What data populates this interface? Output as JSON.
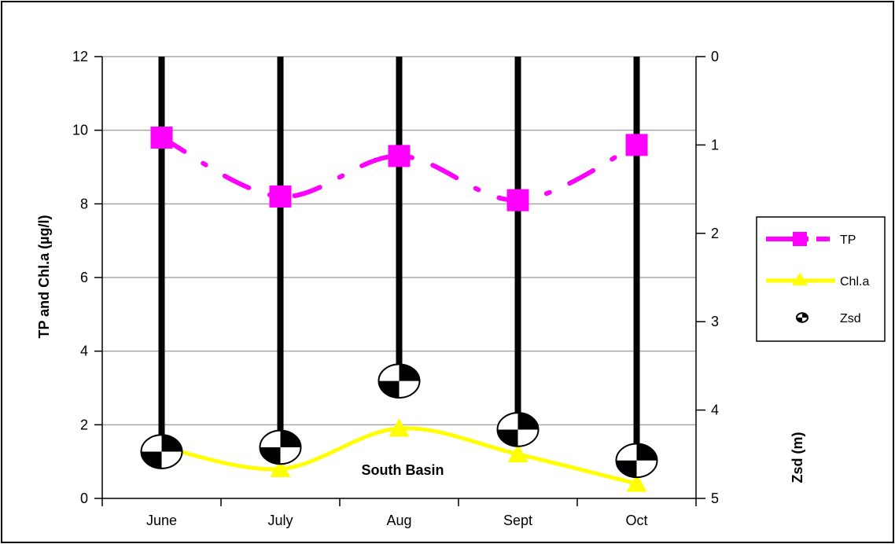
{
  "chart_data": {
    "type": "line",
    "categories": [
      "June",
      "July",
      "Aug",
      "Sept",
      "Oct"
    ],
    "annotation": "South Basin",
    "y_left": {
      "label": "TP and Chl.a (µg/l)",
      "range": [
        0,
        12
      ],
      "ticks": [
        0,
        2,
        4,
        6,
        8,
        10,
        12
      ]
    },
    "y_right": {
      "label": "Zsd (m)",
      "range": [
        0,
        5
      ],
      "inverted": true,
      "ticks": [
        0,
        1,
        2,
        3,
        4,
        5
      ]
    },
    "series": [
      {
        "name": "TP",
        "axis": "left",
        "style": "dash-dot",
        "marker": "square",
        "color": "#ff00ff",
        "values": [
          9.8,
          8.2,
          9.3,
          8.1,
          9.6
        ]
      },
      {
        "name": "Chl.a",
        "axis": "left",
        "style": "smooth",
        "marker": "triangle",
        "color": "#ffff00",
        "values": [
          1.4,
          0.8,
          1.9,
          1.2,
          0.4
        ]
      },
      {
        "name": "Zsd",
        "axis": "right",
        "style": "drop-bars",
        "marker": "disc",
        "color": "#000000",
        "values": [
          4.4,
          4.35,
          3.6,
          4.15,
          4.5
        ]
      }
    ],
    "legend": {
      "position": "right",
      "entries": [
        "TP",
        "Chl.a",
        "Zsd"
      ]
    },
    "grid": {
      "horizontal": true,
      "vertical": false
    }
  }
}
